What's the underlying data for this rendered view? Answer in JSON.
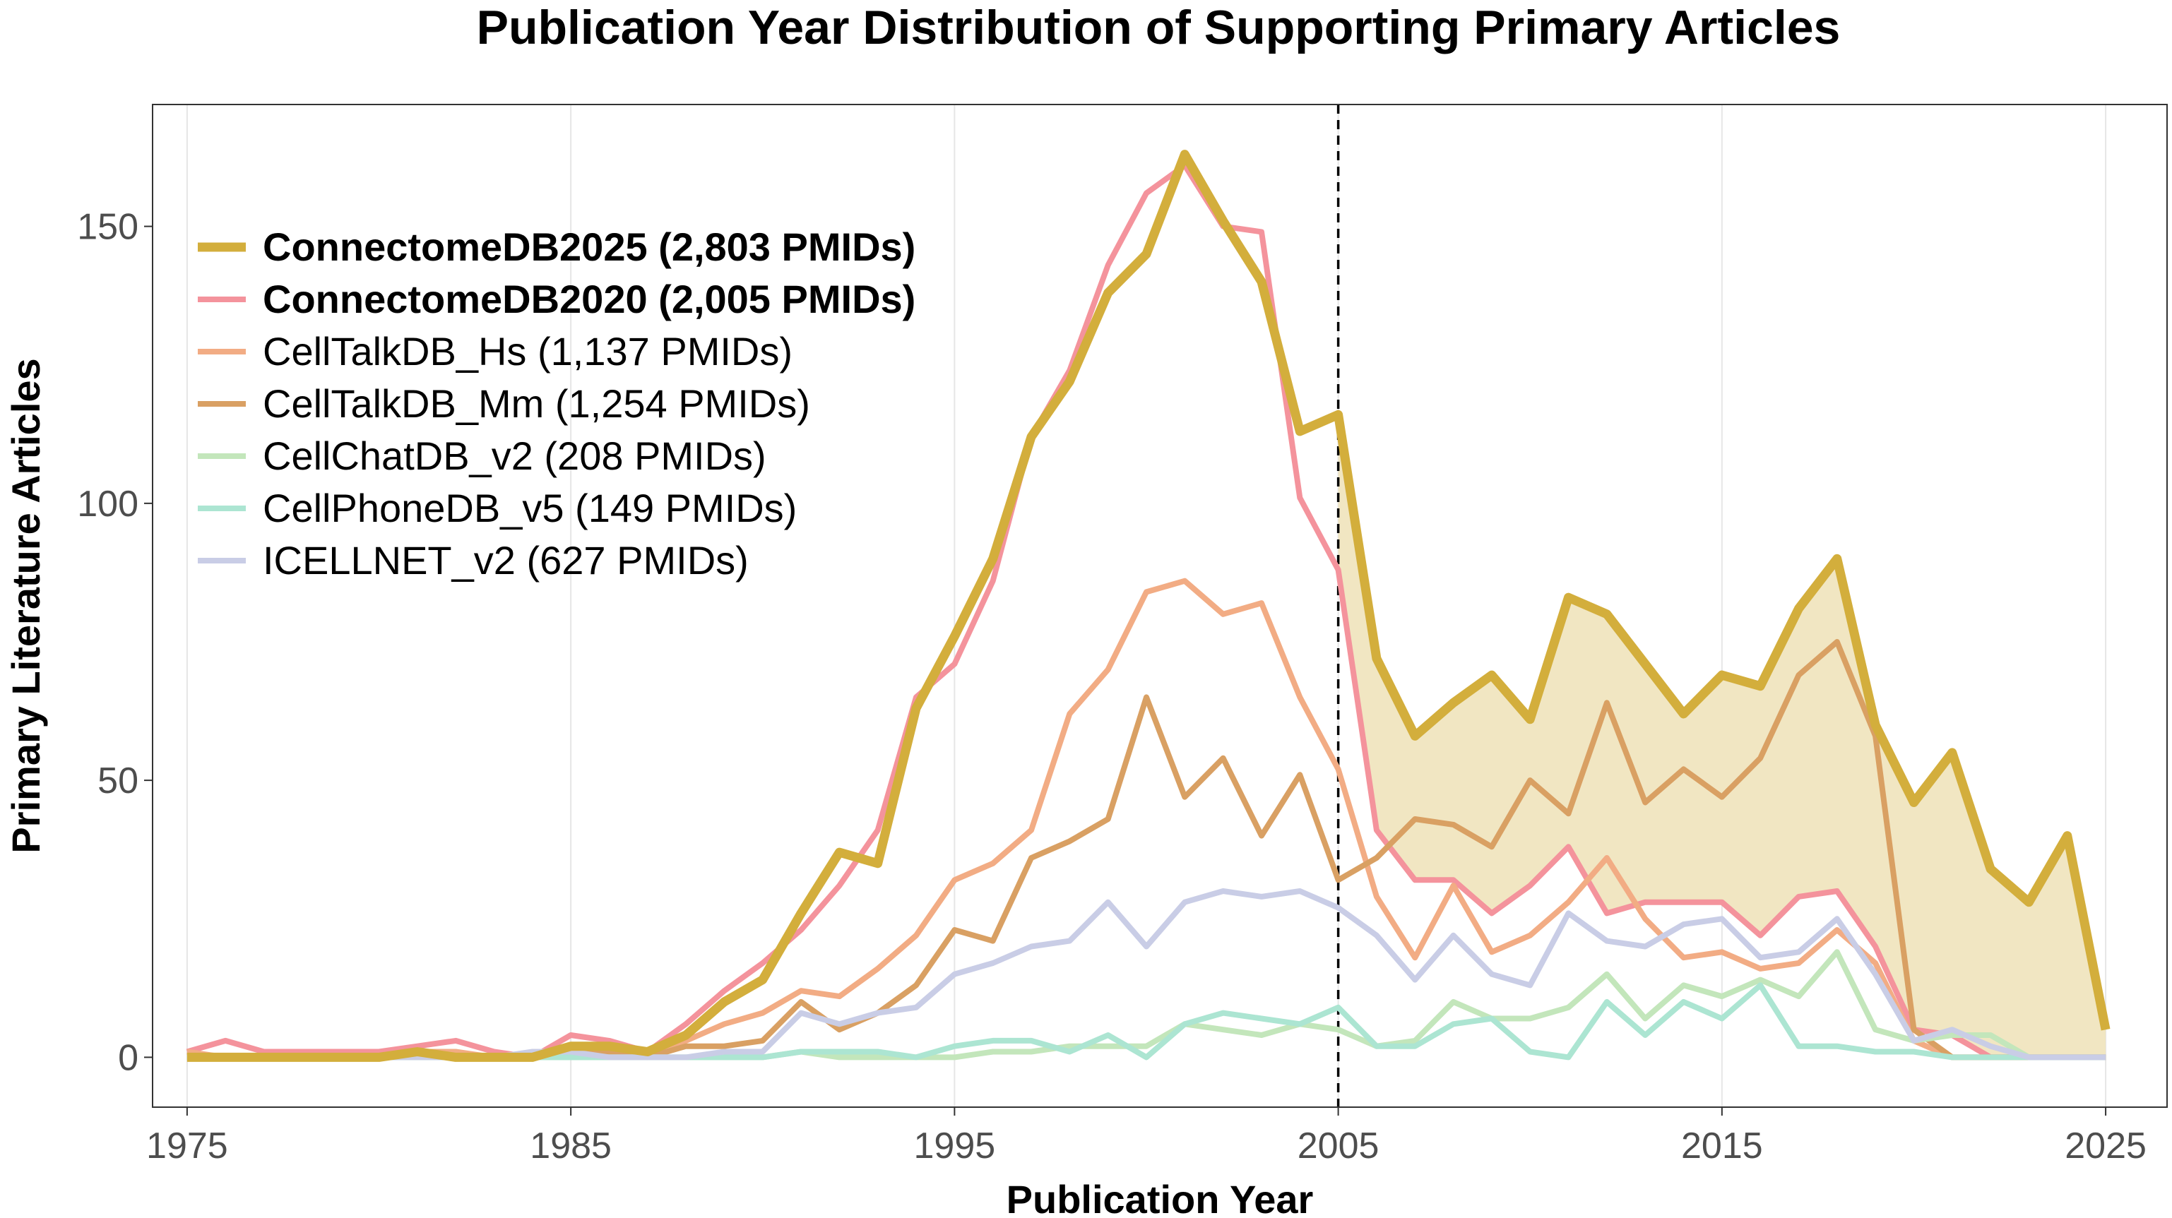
{
  "chart_data": {
    "type": "line",
    "title": "Publication Year Distribution of Supporting Primary Articles",
    "xlabel": "Publication Year",
    "ylabel": "Primary Literature Articles",
    "xlim": [
      1974.1,
      2026.6
    ],
    "ylim": [
      -9,
      172
    ],
    "xticks": [
      1975,
      1985,
      1995,
      2005,
      2015,
      2025
    ],
    "yticks": [
      0,
      50,
      100,
      150
    ],
    "xtick_labels": [
      "1975",
      "1985",
      "1995",
      "2005",
      "2015",
      "2025"
    ],
    "ytick_labels": [
      "0",
      "50",
      "100",
      "150"
    ],
    "reference_line": {
      "x": 2005,
      "style": "dashed"
    },
    "shaded_region": {
      "between": [
        "ConnectomeDB2025",
        "ConnectomeDB2020"
      ],
      "from_x": 2005,
      "color": "#f1e6c2"
    },
    "legend_position": "top-left",
    "x": [
      1975,
      1976,
      1977,
      1978,
      1979,
      1980,
      1981,
      1982,
      1983,
      1984,
      1985,
      1986,
      1987,
      1988,
      1989,
      1990,
      1991,
      1992,
      1993,
      1994,
      1995,
      1996,
      1997,
      1998,
      1999,
      2000,
      2001,
      2002,
      2003,
      2004,
      2005,
      2006,
      2007,
      2008,
      2009,
      2010,
      2011,
      2012,
      2013,
      2014,
      2015,
      2016,
      2017,
      2018,
      2019,
      2020,
      2021,
      2022,
      2023,
      2024,
      2025
    ],
    "series": [
      {
        "name": "ConnectomeDB2020",
        "legend": "ConnectomeDB2020 (2,005 PMIDs)",
        "bold": true,
        "color": "#f4939c",
        "width": 8,
        "values": [
          1,
          3,
          1,
          1,
          1,
          1,
          2,
          3,
          1,
          0,
          4,
          3,
          1,
          6,
          12,
          17,
          23,
          31,
          41,
          65,
          71,
          86,
          112,
          124,
          143,
          156,
          161,
          150,
          149,
          101,
          88,
          41,
          32,
          32,
          26,
          31,
          38,
          26,
          28,
          28,
          28,
          22,
          29,
          30,
          20,
          5,
          4,
          0,
          0,
          0,
          0
        ]
      },
      {
        "name": "CellTalkDB_Hs",
        "legend": "CellTalkDB_Hs (1,137 PMIDs)",
        "bold": false,
        "color": "#f2ac84",
        "width": 8,
        "values": [
          1,
          0,
          0,
          0,
          0,
          0,
          1,
          1,
          0,
          0,
          2,
          2,
          0,
          3,
          6,
          8,
          12,
          11,
          16,
          22,
          32,
          35,
          41,
          62,
          70,
          84,
          86,
          80,
          82,
          65,
          52,
          29,
          18,
          31,
          19,
          22,
          28,
          36,
          25,
          18,
          19,
          16,
          17,
          23,
          17,
          3,
          0,
          0,
          0,
          0,
          0
        ]
      },
      {
        "name": "CellTalkDB_Mm",
        "legend": "CellTalkDB_Mm (1,254 PMIDs)",
        "bold": false,
        "color": "#d9a063",
        "width": 8,
        "values": [
          0,
          0,
          0,
          0,
          0,
          0,
          1,
          0,
          0,
          0,
          1,
          1,
          0,
          2,
          2,
          3,
          10,
          5,
          8,
          13,
          23,
          21,
          36,
          39,
          43,
          65,
          47,
          54,
          40,
          51,
          32,
          36,
          43,
          42,
          38,
          50,
          44,
          64,
          46,
          52,
          47,
          54,
          69,
          75,
          58,
          5,
          0,
          0,
          0,
          0,
          0
        ]
      },
      {
        "name": "CellChatDB_v2",
        "legend": "CellChatDB_v2 (208 PMIDs)",
        "bold": false,
        "color": "#c3e6bb",
        "width": 8,
        "values": [
          0,
          0,
          0,
          0,
          0,
          0,
          0,
          0,
          0,
          0,
          0,
          0,
          0,
          0,
          0,
          0,
          1,
          0,
          0,
          0,
          0,
          1,
          1,
          2,
          2,
          2,
          6,
          5,
          4,
          6,
          5,
          2,
          3,
          10,
          7,
          7,
          9,
          15,
          7,
          13,
          11,
          14,
          11,
          19,
          5,
          3,
          4,
          4,
          0,
          0,
          0
        ]
      },
      {
        "name": "CellPhoneDB_v5",
        "legend": "CellPhoneDB_v5 (149 PMIDs)",
        "bold": false,
        "color": "#ace5d2",
        "width": 8,
        "values": [
          0,
          0,
          0,
          0,
          0,
          0,
          0,
          0,
          0,
          0,
          0,
          0,
          0,
          0,
          0,
          0,
          1,
          1,
          1,
          0,
          2,
          3,
          3,
          1,
          4,
          0,
          6,
          8,
          7,
          6,
          9,
          2,
          2,
          6,
          7,
          1,
          0,
          10,
          4,
          10,
          7,
          13,
          2,
          2,
          1,
          1,
          0,
          0,
          0,
          0,
          0
        ]
      },
      {
        "name": "ICELLNET_v2",
        "legend": "ICELLNET_v2 (627 PMIDs)",
        "bold": false,
        "color": "#c9cde6",
        "width": 8,
        "values": [
          0,
          0,
          0,
          0,
          0,
          0,
          0,
          0,
          0,
          1,
          1,
          0,
          0,
          0,
          1,
          1,
          8,
          6,
          8,
          9,
          15,
          17,
          20,
          21,
          28,
          20,
          28,
          30,
          29,
          30,
          27,
          22,
          14,
          22,
          15,
          13,
          26,
          21,
          20,
          24,
          25,
          18,
          19,
          25,
          15,
          3,
          5,
          2,
          0,
          0,
          0
        ]
      },
      {
        "name": "ConnectomeDB2025",
        "legend": "ConnectomeDB2025 (2,803 PMIDs)",
        "bold": true,
        "color": "#d3ae3c",
        "width": 13,
        "values": [
          0,
          0,
          0,
          0,
          0,
          0,
          1,
          0,
          0,
          0,
          2,
          2,
          1,
          4,
          10,
          14,
          26,
          37,
          35,
          63,
          76,
          90,
          112,
          122,
          138,
          145,
          163,
          151,
          140,
          113,
          116,
          72,
          58,
          64,
          69,
          61,
          83,
          80,
          71,
          62,
          69,
          67,
          81,
          90,
          60,
          46,
          55,
          34,
          28,
          40,
          5
        ]
      }
    ],
    "legend_order": [
      "ConnectomeDB2025",
      "ConnectomeDB2020",
      "CellTalkDB_Hs",
      "CellTalkDB_Mm",
      "CellChatDB_v2",
      "CellPhoneDB_v5",
      "ICELLNET_v2"
    ]
  }
}
